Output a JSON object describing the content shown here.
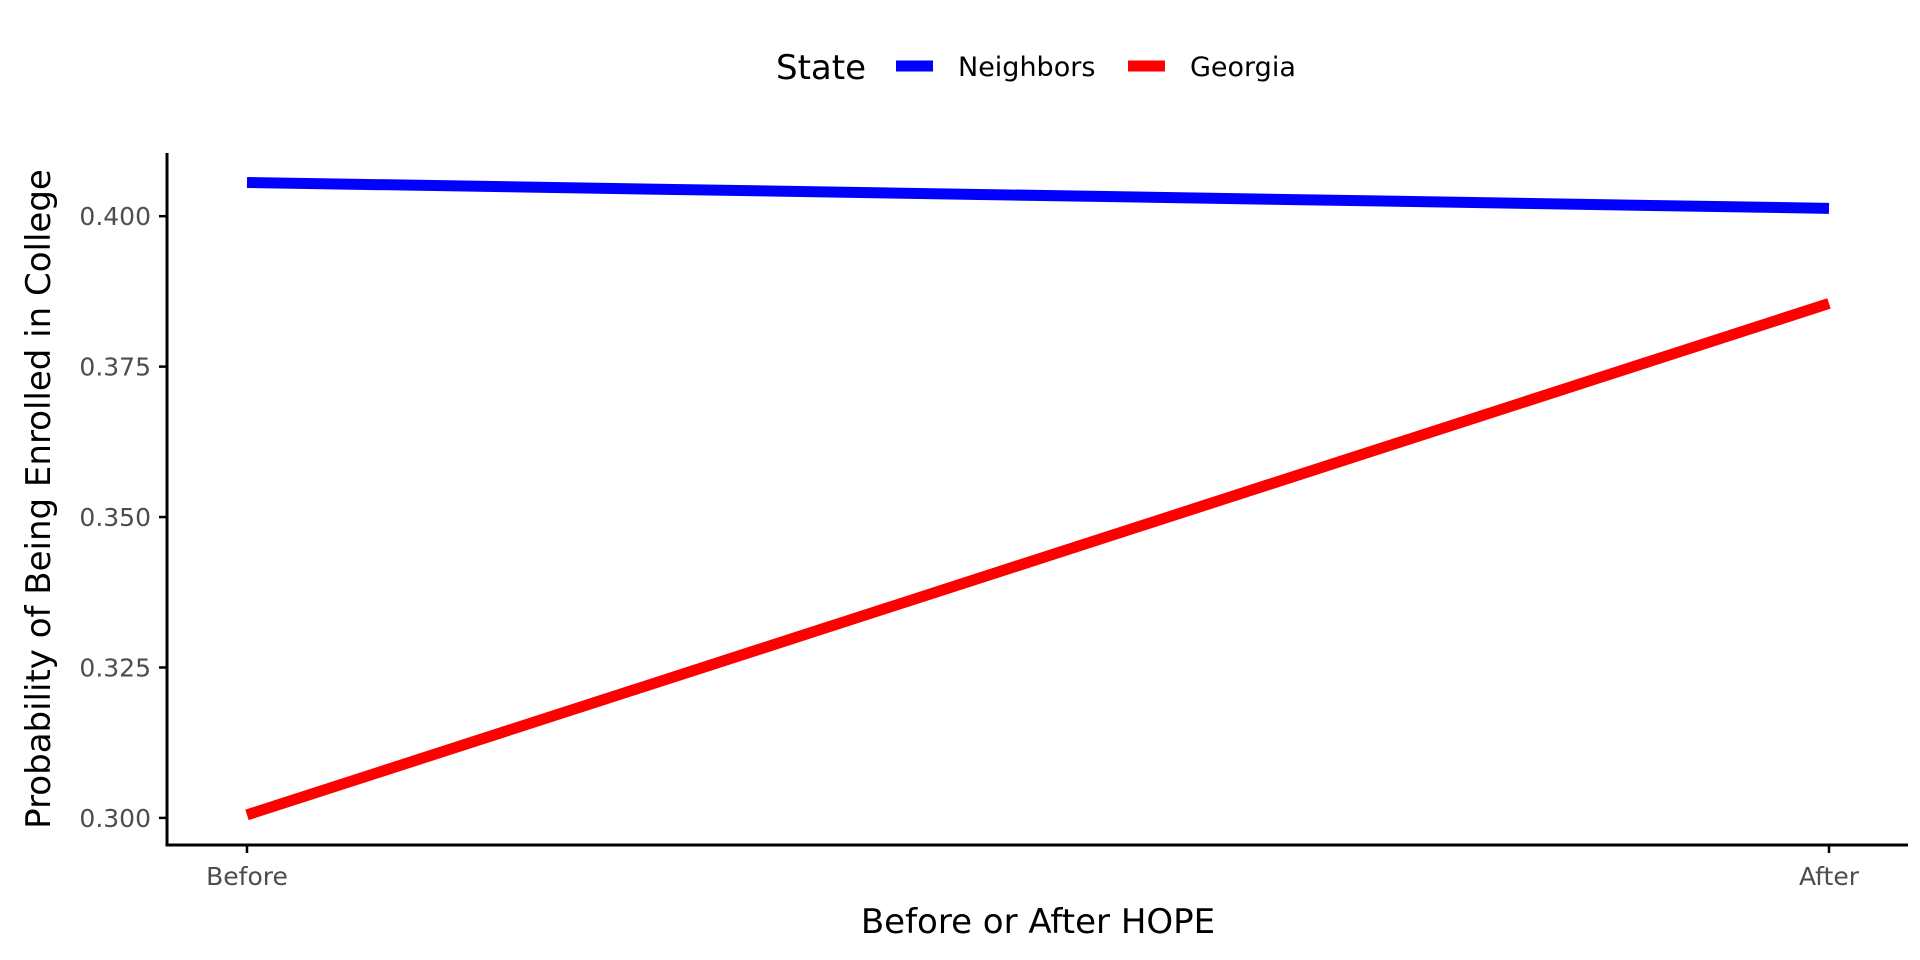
{
  "chart_data": {
    "type": "line",
    "title": "",
    "xlabel": "Before or After HOPE",
    "ylabel": "Probability of Being Enrolled in College",
    "categories": [
      "Before",
      "After"
    ],
    "yticks": [
      "0.300",
      "0.325",
      "0.350",
      "0.375",
      "0.400"
    ],
    "ylim": [
      0.2955,
      0.4105
    ],
    "grid": false,
    "legend": {
      "title": "State",
      "position": "top"
    },
    "series": [
      {
        "name": "Neighbors",
        "color": "#0000ff",
        "values": [
          0.4056,
          0.4013
        ]
      },
      {
        "name": "Georgia",
        "color": "#ff0000",
        "values": [
          0.3005,
          0.3855
        ]
      }
    ]
  }
}
